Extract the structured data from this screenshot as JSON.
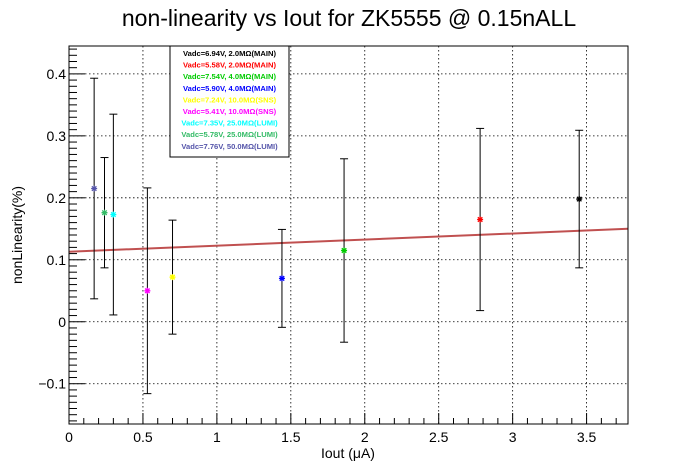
{
  "chart_data": {
    "type": "scatter",
    "title": "non-linearity vs Iout for ZK5555 @ 0.15nALL",
    "xlabel": "Iout (μA)",
    "ylabel": "nonLinearity(%)",
    "xlim": [
      0,
      3.78
    ],
    "ylim": [
      -0.165,
      0.445
    ],
    "x_ticks": [
      0,
      0.5,
      1,
      1.5,
      2,
      2.5,
      3,
      3.5
    ],
    "x_tick_labels": [
      "0",
      "0.5",
      "1",
      "1.5",
      "2",
      "2.5",
      "3",
      "3.5"
    ],
    "y_ticks": [
      -0.1,
      0,
      0.1,
      0.2,
      0.3,
      0.4
    ],
    "y_tick_labels": [
      "−0.1",
      "0",
      "0.1",
      "0.2",
      "0.3",
      "0.4"
    ],
    "grid": true,
    "legend_position": "top-left",
    "series": [
      {
        "name": "Vadc=6.94V, 2.0MΩ(MAIN)",
        "color": "#000000",
        "points": [
          {
            "x": 3.45,
            "y": 0.198,
            "err": 0.111
          }
        ]
      },
      {
        "name": "Vadc=5.58V, 2.0MΩ(MAIN)",
        "color": "#ff0000",
        "points": [
          {
            "x": 2.78,
            "y": 0.165,
            "err": 0.147
          }
        ]
      },
      {
        "name": "Vadc=7.54V, 4.0MΩ(MAIN)",
        "color": "#00cc00",
        "points": [
          {
            "x": 1.86,
            "y": 0.115,
            "err": 0.148
          }
        ]
      },
      {
        "name": "Vadc=5.90V, 4.0MΩ(MAIN)",
        "color": "#0000ff",
        "points": [
          {
            "x": 1.44,
            "y": 0.07,
            "err": 0.079
          }
        ]
      },
      {
        "name": "Vadc=7.24V, 10.0MΩ(SNS)",
        "color": "#ffff00",
        "points": [
          {
            "x": 0.7,
            "y": 0.072,
            "err": 0.092
          }
        ]
      },
      {
        "name": "Vadc=5.41V, 10.0MΩ(SNS)",
        "color": "#ff00ff",
        "points": [
          {
            "x": 0.53,
            "y": 0.05,
            "err": 0.166
          }
        ]
      },
      {
        "name": "Vadc=7.35V, 25.0MΩ(LUMI)",
        "color": "#00ffff",
        "points": [
          {
            "x": 0.3,
            "y": 0.173,
            "err": 0.162
          }
        ]
      },
      {
        "name": "Vadc=5.78V, 25.0MΩ(LUMI)",
        "color": "#33bb66",
        "points": [
          {
            "x": 0.24,
            "y": 0.176,
            "err": 0.089
          }
        ]
      },
      {
        "name": "Vadc=7.76V, 50.0MΩ(LUMI)",
        "color": "#5555aa",
        "points": [
          {
            "x": 0.17,
            "y": 0.215,
            "err": 0.178
          }
        ]
      }
    ],
    "fit_line": {
      "color": "#c05050",
      "x": [
        0,
        3.78
      ],
      "y": [
        0.113,
        0.15
      ]
    }
  }
}
